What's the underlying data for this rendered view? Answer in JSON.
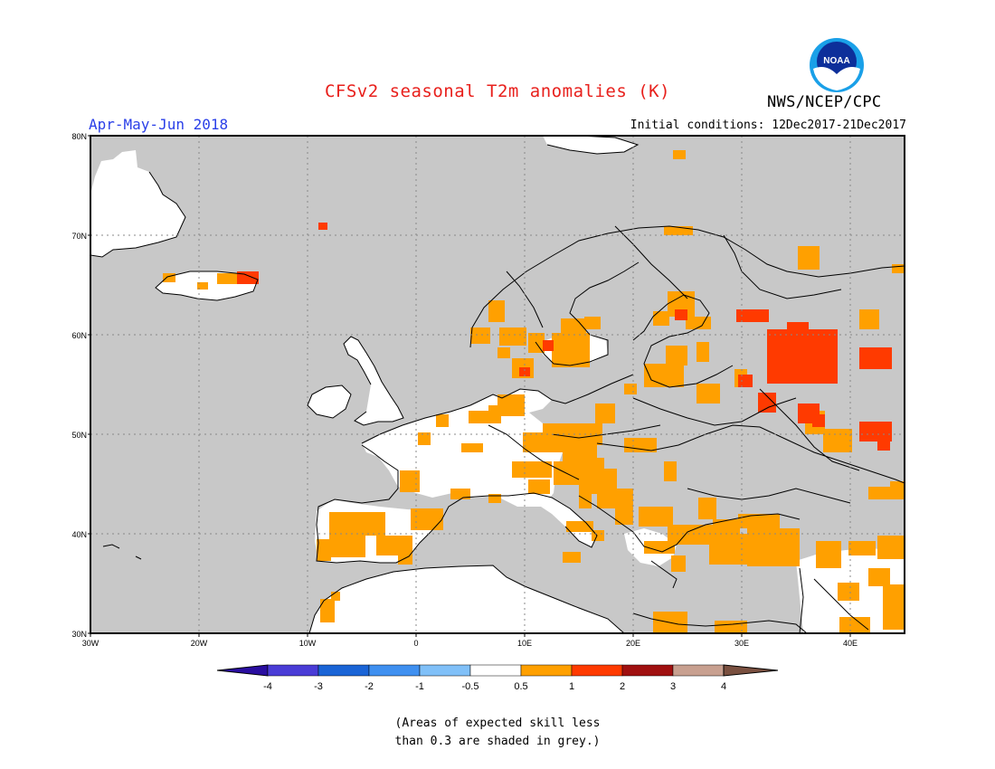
{
  "header": {
    "title": "CFSv2 seasonal T2m anomalies (K)",
    "period": "Apr-May-Jun 2018",
    "initial_conditions": "Initial conditions: 12Dec2017-21Dec2017",
    "agency": "NWS/NCEP/CPC",
    "logo_icon": "noaa-logo-icon",
    "logo_text": "NOAA"
  },
  "map": {
    "lat_labels": [
      "80N",
      "70N",
      "60N",
      "50N",
      "40N",
      "30N"
    ],
    "lon_labels": [
      "30W",
      "20W",
      "10W",
      "0",
      "10E",
      "20E",
      "30E",
      "40E"
    ],
    "colors": {
      "grey_low_skill": "#c8c8c8",
      "neutral": "#ffffff",
      "warm_0_5_1": "#ffa000",
      "warm_1_2": "#ff3a00",
      "coastline": "#000000"
    }
  },
  "legend": {
    "labels": [
      "-4",
      "-3",
      "-2",
      "-1",
      "-0.5",
      "0.5",
      "1",
      "2",
      "3",
      "4"
    ],
    "colors": [
      "#2a0ea0",
      "#4a3cd6",
      "#1a64d6",
      "#3f90f0",
      "#80c0f8",
      "#ffffff",
      "#ffa000",
      "#ff3a00",
      "#a01010",
      "#c8a090",
      "#7a5040"
    ]
  },
  "note": {
    "line1": "(Areas of expected skill less",
    "line2": "than 0.3 are shaded in grey.)"
  }
}
